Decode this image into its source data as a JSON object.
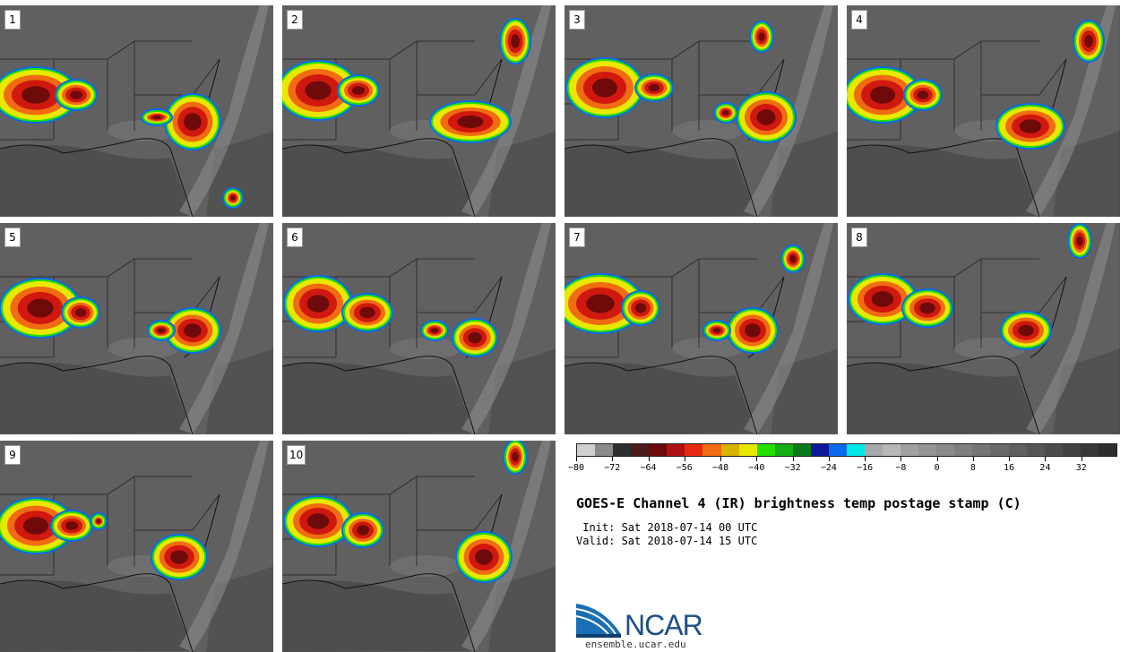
{
  "panels": [
    {
      "label": "1"
    },
    {
      "label": "2"
    },
    {
      "label": "3"
    },
    {
      "label": "4"
    },
    {
      "label": "5"
    },
    {
      "label": "6"
    },
    {
      "label": "7"
    },
    {
      "label": "8"
    },
    {
      "label": "9"
    },
    {
      "label": "10"
    }
  ],
  "colorbar": {
    "colors": [
      "#cfcfcf",
      "#8a8a8a",
      "#2e2e2e",
      "#4b1a1a",
      "#6e0a0a",
      "#b01212",
      "#e82a12",
      "#f06b12",
      "#d8b400",
      "#e8e800",
      "#22e000",
      "#16b016",
      "#0b7a1a",
      "#0a1a9a",
      "#0a6aee",
      "#00e8e8",
      "#a8a8a8",
      "#b8b8b8",
      "#a0a0a0",
      "#959595",
      "#8a8a8a",
      "#7f7f7f",
      "#747474",
      "#6a6a6a",
      "#606060",
      "#565656",
      "#4c4c4c",
      "#424242",
      "#383838",
      "#2e2e2e"
    ],
    "ticks": [
      "−80",
      "−72",
      "−64",
      "−56",
      "−48",
      "−40",
      "−32",
      "−24",
      "−16",
      "−8",
      "0",
      "8",
      "16",
      "24",
      "32"
    ],
    "range": [
      -80,
      40
    ]
  },
  "title": "GOES-E Channel 4 (IR) brightness temp postage stamp (C)",
  "init": " Init: Sat 2018-07-14 00 UTC",
  "valid": "Valid: Sat 2018-07-14 15 UTC",
  "logo": {
    "text": "NCAR",
    "url": "ensemble.ucar.edu"
  }
}
